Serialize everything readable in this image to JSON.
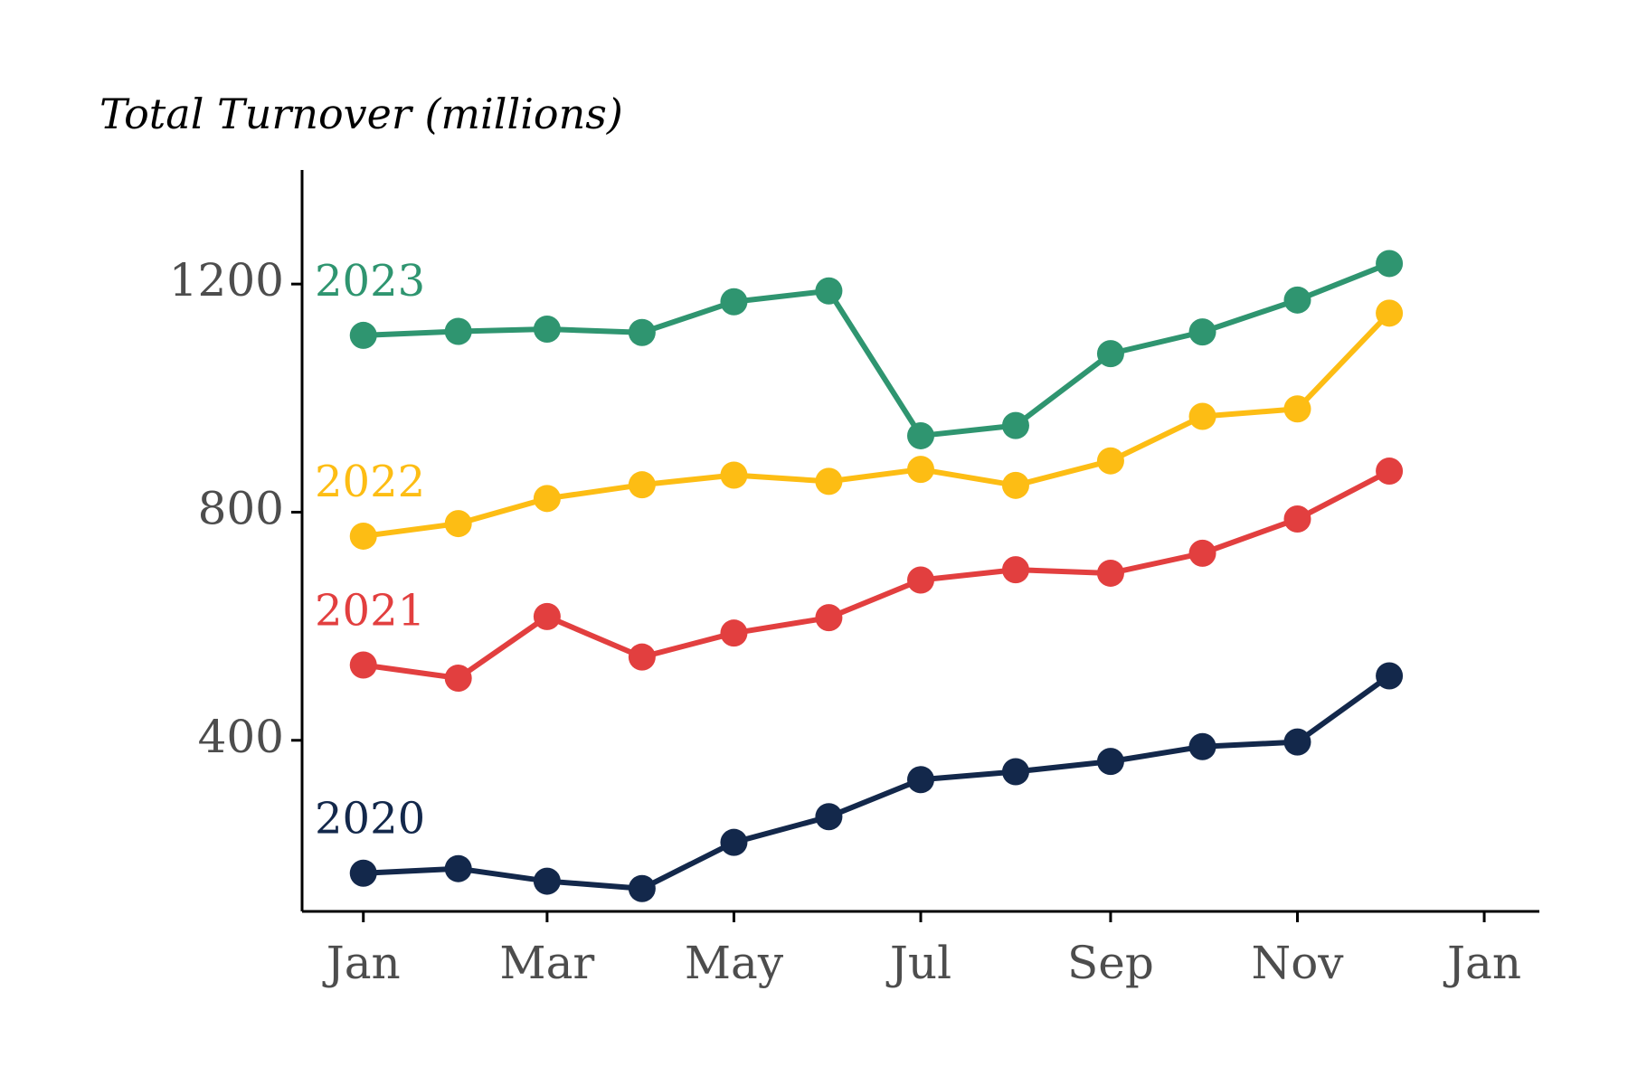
{
  "chart_data": {
    "type": "line",
    "ylabel": "Total Turnover (millions)",
    "xlabel": "",
    "ylim": [
      100,
      1400
    ],
    "yticks": [
      400,
      800,
      1200
    ],
    "xlim": [
      "2023-12-12",
      "2025-01-19"
    ],
    "xticks": [
      {
        "date": "2024-01-01",
        "label": "Jan"
      },
      {
        "date": "2024-03-01",
        "label": "Mar"
      },
      {
        "date": "2024-05-01",
        "label": "May"
      },
      {
        "date": "2024-07-01",
        "label": "Jul"
      },
      {
        "date": "2024-09-01",
        "label": "Sep"
      },
      {
        "date": "2024-11-01",
        "label": "Nov"
      },
      {
        "date": "2025-01-01",
        "label": "Jan"
      }
    ],
    "x": [
      "2024-01-01",
      "2024-02-01",
      "2024-03-01",
      "2024-04-01",
      "2024-05-01",
      "2024-06-01",
      "2024-07-01",
      "2024-08-01",
      "2024-09-01",
      "2024-10-01",
      "2024-11-01",
      "2024-12-01"
    ],
    "series": [
      {
        "name": "2020",
        "color": "#13284b",
        "values": [
          167,
          175,
          153,
          140,
          221,
          266,
          331,
          345,
          363,
          389,
          397,
          513
        ]
      },
      {
        "name": "2021",
        "color": "#e23f3f",
        "values": [
          532,
          509,
          617,
          546,
          588,
          615,
          681,
          699,
          693,
          728,
          788,
          872
        ]
      },
      {
        "name": "2022",
        "color": "#fdbd14",
        "values": [
          758,
          780,
          824,
          848,
          865,
          854,
          875,
          847,
          890,
          968,
          981,
          1149
        ]
      },
      {
        "name": "2023",
        "color": "#2f9570",
        "values": [
          1110,
          1117,
          1121,
          1115,
          1169,
          1188,
          934,
          952,
          1078,
          1116,
          1172,
          1236
        ]
      }
    ],
    "grid": false,
    "legend": "none"
  }
}
